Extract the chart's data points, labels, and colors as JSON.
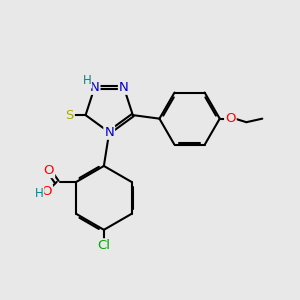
{
  "bg_color": "#e8e8e8",
  "bond_color": "#000000",
  "bond_width": 1.5,
  "atom_colors": {
    "N": "#0000cc",
    "S": "#aaaa00",
    "O": "#ff0000",
    "Cl": "#00aa00",
    "C": "#000000",
    "H": "#008888"
  },
  "font_size": 9.5
}
